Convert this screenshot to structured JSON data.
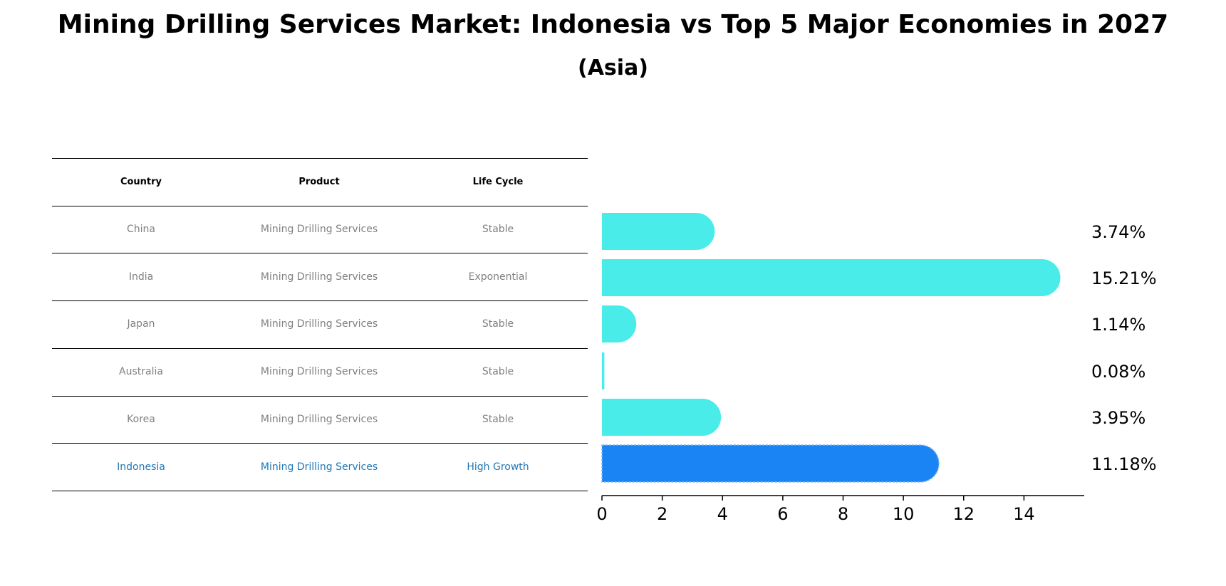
{
  "title": "Mining Drilling Services Market: Indonesia vs Top 5 Major Economies in 2027",
  "subtitle": "(Asia)",
  "table": {
    "headers": [
      "Country",
      "Product",
      "Life Cycle"
    ],
    "rows": [
      {
        "country": "China",
        "product": "Mining Drilling Services",
        "life_cycle": "Stable",
        "highlight": false
      },
      {
        "country": "India",
        "product": "Mining Drilling Services",
        "life_cycle": "Exponential",
        "highlight": false
      },
      {
        "country": "Japan",
        "product": "Mining Drilling Services",
        "life_cycle": "Stable",
        "highlight": false
      },
      {
        "country": "Australia",
        "product": "Mining Drilling Services",
        "life_cycle": "Stable",
        "highlight": false
      },
      {
        "country": "Korea",
        "product": "Mining Drilling Services",
        "life_cycle": "Stable",
        "highlight": false
      },
      {
        "country": "Indonesia",
        "product": "Mining Drilling Services",
        "life_cycle": "High Growth",
        "highlight": true
      }
    ]
  },
  "chart_data": {
    "type": "bar",
    "orientation": "horizontal",
    "categories": [
      "China",
      "India",
      "Japan",
      "Australia",
      "Korea",
      "Indonesia"
    ],
    "values": [
      3.74,
      15.21,
      1.14,
      0.08,
      3.95,
      11.18
    ],
    "value_labels": [
      "3.74%",
      "15.21%",
      "1.14%",
      "0.08%",
      "3.95%",
      "11.18%"
    ],
    "xlim": [
      0,
      16
    ],
    "xticks": [
      0,
      2,
      4,
      6,
      8,
      10,
      12,
      14
    ],
    "grid": false,
    "colors": {
      "default": "#4aece9",
      "highlight": "#1a84f5"
    }
  }
}
